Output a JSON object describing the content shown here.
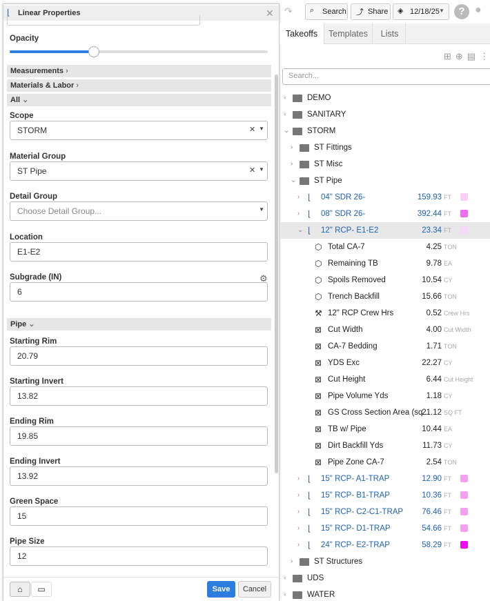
{
  "dialog": {
    "title": "Linear Properties",
    "opacity_label": "Opacity",
    "sections": {
      "measurements": "Measurements",
      "materials_labor": "Materials & Labor",
      "all": "All"
    },
    "scope": {
      "label": "Scope",
      "value": "STORM"
    },
    "material_group": {
      "label": "Material Group",
      "value": "ST Pipe"
    },
    "detail_group": {
      "label": "Detail Group",
      "placeholder": "Choose Detail Group..."
    },
    "location": {
      "label": "Location",
      "value": "E1-E2"
    },
    "subgrade": {
      "label": "Subgrade (IN)",
      "value": "6"
    },
    "pipe_section": "Pipe",
    "pipe_fields": [
      {
        "label": "Starting Rim",
        "value": "20.79"
      },
      {
        "label": "Starting Invert",
        "value": "13.82"
      },
      {
        "label": "Ending Rim",
        "value": "19.85"
      },
      {
        "label": "Ending Invert",
        "value": "13.92"
      },
      {
        "label": "Green Space",
        "value": "15"
      },
      {
        "label": "Pipe Size",
        "value": "12"
      }
    ],
    "save": "Save",
    "cancel": "Cancel"
  },
  "toolbar": {
    "search": "Search",
    "share": "Share",
    "date": "12/18/25"
  },
  "tabs": [
    "Takeoffs",
    "Templates",
    "Lists"
  ],
  "search_placeholder": "Search...",
  "tree": [
    {
      "name": "DEMO"
    },
    {
      "name": "SANITARY"
    },
    {
      "name": "STORM",
      "children": [
        {
          "name": "ST Fittings"
        },
        {
          "name": "ST Misc"
        },
        {
          "name": "ST Pipe",
          "children": [
            {
              "name": "04\" SDR 26-",
              "value": "159.93",
              "unit": "FT",
              "color": "#f8d0f6"
            },
            {
              "name": "08\" SDR 26-",
              "value": "392.44",
              "unit": "FT",
              "color": "#f06cee"
            },
            {
              "name": "12\" RCP- E1-E2",
              "value": "23.34",
              "unit": "FT",
              "color": "#f8d8f7",
              "selected": true,
              "items": {
                "materials": [
                  {
                    "name": "Total CA-7",
                    "value": "4.25",
                    "unit": "TON"
                  },
                  {
                    "name": "Remaining TB",
                    "value": "9.78",
                    "unit": "EA"
                  },
                  {
                    "name": "Spoils Removed",
                    "value": "10.54",
                    "unit": "CY"
                  },
                  {
                    "name": "Trench Backfill",
                    "value": "15.66",
                    "unit": "TON"
                  }
                ],
                "labor": [
                  {
                    "name": "12\" RCP Crew Hrs",
                    "value": "0.52",
                    "unit": "Crew Hrs"
                  }
                ],
                "formulas": [
                  {
                    "name": "Cut Width",
                    "value": "4.00",
                    "unit": "Cut Width"
                  },
                  {
                    "name": "CA-7 Bedding",
                    "value": "1.71",
                    "unit": "TON"
                  },
                  {
                    "name": "YDS Exc",
                    "value": "22.27",
                    "unit": "CY"
                  },
                  {
                    "name": "Cut Height",
                    "value": "6.44",
                    "unit": "Cut Height"
                  },
                  {
                    "name": "Pipe Volume Yds",
                    "value": "1.18",
                    "unit": "CY"
                  },
                  {
                    "name": "GS Cross Section Area (sq...",
                    "value": "21.12",
                    "unit": "SQ FT"
                  },
                  {
                    "name": "TB w/ Pipe",
                    "value": "10.44",
                    "unit": "EA"
                  },
                  {
                    "name": "Dirt Backfill Yds",
                    "value": "11.73",
                    "unit": "CY"
                  },
                  {
                    "name": "Pipe Zone CA-7",
                    "value": "2.54",
                    "unit": "TON"
                  }
                ]
              }
            },
            {
              "name": "15\" RCP- A1-TRAP",
              "value": "12.90",
              "unit": "FT",
              "color": "#f3a2ef"
            },
            {
              "name": "15\" RCP- B1-TRAP",
              "value": "10.36",
              "unit": "FT",
              "color": "#f3a2ef"
            },
            {
              "name": "15\" RCP- C2-C1-TRAP",
              "value": "76.46",
              "unit": "FT",
              "color": "#f3a2ef"
            },
            {
              "name": "15\" RCP- D1-TRAP",
              "value": "54.66",
              "unit": "FT",
              "color": "#f3a2ef"
            },
            {
              "name": "24\" RCP- E2-TRAP",
              "value": "58.29",
              "unit": "FT",
              "color": "#f00ded"
            }
          ]
        },
        {
          "name": "ST Structures"
        }
      ]
    },
    {
      "name": "UDS"
    },
    {
      "name": "WATER"
    }
  ]
}
